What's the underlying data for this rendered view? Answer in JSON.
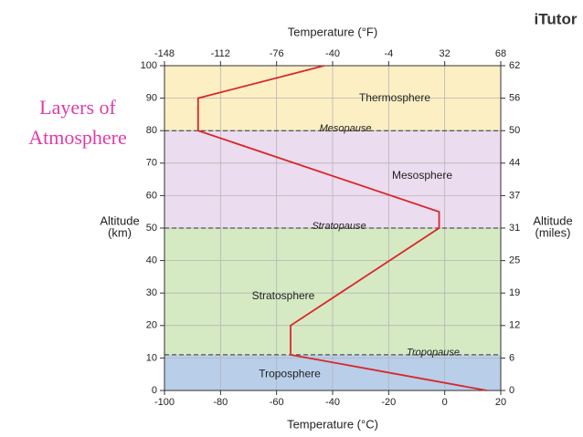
{
  "chart_data": {
    "type": "line",
    "side_title": [
      "Layers of",
      "Atmosphere"
    ],
    "logo": "iTutor",
    "x_label": "Temperature (°C)",
    "x2_label": "Temperature (°F)",
    "y_label": [
      "Altitude",
      "(km)"
    ],
    "y2_label": [
      "Altitude",
      "(miles)"
    ],
    "xlim": [
      -100,
      20
    ],
    "xticks": [
      -100,
      -80,
      -60,
      -40,
      -20,
      0,
      20
    ],
    "x2lim": [
      -148,
      68
    ],
    "x2ticks": [
      -148,
      -112,
      -76,
      -40,
      -4,
      32,
      68
    ],
    "ylim": [
      0,
      100
    ],
    "yticks": [
      0,
      10,
      20,
      30,
      40,
      50,
      60,
      70,
      80,
      90,
      100
    ],
    "y2lim": [
      0,
      62.14
    ],
    "y2ticks": [
      0,
      {
        "value": 6.21,
        "label": "6"
      },
      {
        "value": 12.43,
        "label": "12"
      },
      {
        "value": 18.64,
        "label": "19"
      },
      {
        "value": 24.85,
        "label": "25"
      },
      {
        "value": 31.07,
        "label": "31"
      },
      {
        "value": 37.28,
        "label": "37"
      },
      {
        "value": 43.5,
        "label": "44"
      },
      {
        "value": 49.71,
        "label": "50"
      },
      {
        "value": 55.92,
        "label": "56"
      },
      {
        "value": 62.14,
        "label": "62"
      }
    ],
    "grid": true,
    "regions": [
      {
        "name": "Troposphere",
        "from": 0,
        "to": 11,
        "color": "#b9cee8"
      },
      {
        "name": "Stratosphere",
        "from": 11,
        "to": 50,
        "color": "#d5eac3"
      },
      {
        "name": "Mesosphere",
        "from": 50,
        "to": 80,
        "color": "#ecdcef"
      },
      {
        "name": "Thermosphere",
        "from": 80,
        "to": 100,
        "color": "#fcefc3"
      }
    ],
    "boundaries": [
      {
        "name": "Tropopause",
        "value": 11
      },
      {
        "name": "Stratopause",
        "value": 50
      },
      {
        "name": "Mesopause",
        "value": 80
      }
    ],
    "series": [
      {
        "color": "#d9262b",
        "x": [
          15,
          -55,
          -55,
          -2,
          -2,
          -88,
          -88,
          -43
        ],
        "values": [
          0,
          11,
          20,
          50,
          55,
          80,
          90,
          100
        ]
      }
    ]
  }
}
